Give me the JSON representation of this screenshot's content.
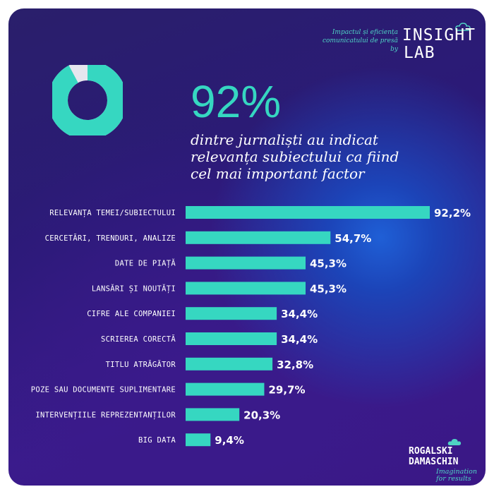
{
  "header": {
    "logo_caption_line1": "Impactul și eficiența",
    "logo_caption_line2": "comunicatului de presă by",
    "logo_line1": "INSIGHT",
    "logo_line2": "LAB"
  },
  "headline": {
    "percent_text": "92%",
    "percent_value": 92,
    "line1": "dintre jurnaliști au indicat",
    "line2": "relevanța subiectului ca fiind",
    "line3": "cel mai important factor"
  },
  "colors": {
    "accent": "#36d7c1",
    "donut_remainder": "#e6e6ee",
    "background": "#2b1a78",
    "text": "#ffffff"
  },
  "chart_data": {
    "type": "bar",
    "orientation": "horizontal",
    "categories": [
      "RELEVANȚA TEMEI/SUBIECTULUI",
      "CERCETĂRI, TRENDURI, ANALIZE",
      "DATE DE PIAȚĂ",
      "LANSĂRI ȘI NOUTĂȚI",
      "CIFRE ALE COMPANIEI",
      "SCRIEREA CORECTĂ",
      "TITLU ATRĂGĂTOR",
      "POZE SAU DOCUMENTE SUPLIMENTARE",
      "INTERVENȚIILE REPREZENTANȚILOR",
      "BIG DATA"
    ],
    "values": [
      92.2,
      54.7,
      45.3,
      45.3,
      34.4,
      34.4,
      32.8,
      29.7,
      20.3,
      9.4
    ],
    "value_labels": [
      "92,2%",
      "54,7%",
      "45,3%",
      "45,3%",
      "34,4%",
      "34,4%",
      "32,8%",
      "29,7%",
      "20,3%",
      "9,4%"
    ],
    "xlim": [
      0,
      100
    ]
  },
  "footer": {
    "logo_line1": "ROGALSKI",
    "logo_line2": "DAMASCHIN",
    "tagline_line1": "Imagination",
    "tagline_line2": "for results"
  }
}
